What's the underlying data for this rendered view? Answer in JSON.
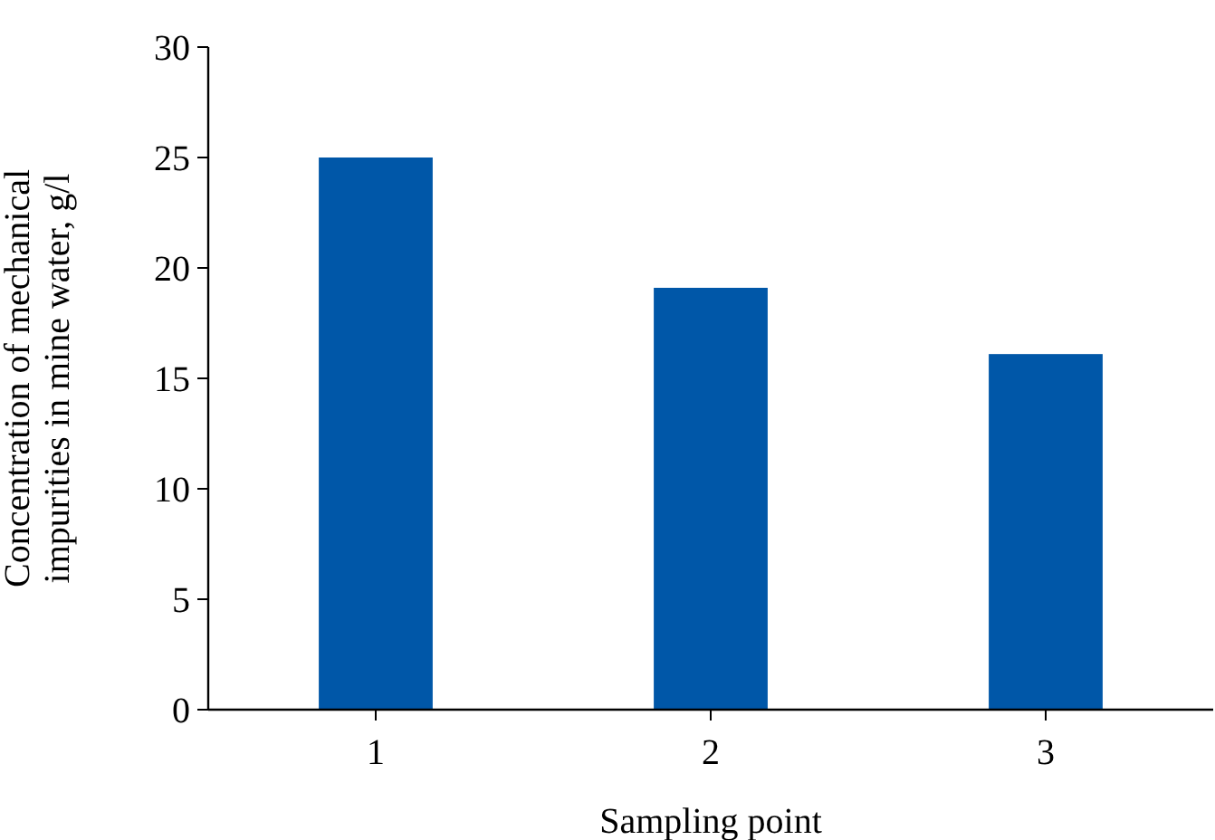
{
  "chart_data": {
    "type": "bar",
    "categories": [
      "1",
      "2",
      "3"
    ],
    "values": [
      25,
      19.1,
      16.1
    ],
    "color": "#0057a8",
    "xlabel": "Sampling point",
    "ylabel": "Concentration of mechanical\nimpurities in mine water, g/l",
    "ylim": [
      0,
      30
    ],
    "yticks": [
      0,
      5,
      10,
      15,
      20,
      25,
      30
    ],
    "grid": false
  }
}
